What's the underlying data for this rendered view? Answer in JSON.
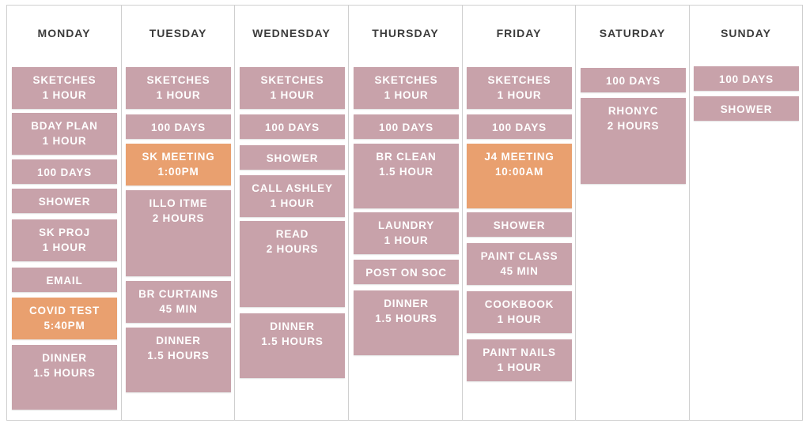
{
  "days": [
    {
      "name": "MONDAY",
      "tasks": [
        {
          "line1": "SKETCHES",
          "line2": "1 HOUR"
        },
        {
          "line1": "BDAY PLAN",
          "line2": "1 HOUR"
        },
        {
          "line1": "100 DAYS",
          "line2": ""
        },
        {
          "line1": "SHOWER",
          "line2": ""
        },
        {
          "line1": "SK PROJ",
          "line2": "1 HOUR"
        },
        {
          "line1": "EMAIL",
          "line2": ""
        },
        {
          "line1": "COVID TEST",
          "line2": "5:40PM",
          "color": "#e9a06f"
        },
        {
          "line1": "DINNER",
          "line2": "1.5 HOURS"
        }
      ]
    },
    {
      "name": "TUESDAY",
      "tasks": [
        {
          "line1": "SKETCHES",
          "line2": "1 HOUR"
        },
        {
          "line1": "100 DAYS",
          "line2": ""
        },
        {
          "line1": "SK MEETING",
          "line2": "1:00PM",
          "color": "#e9a06f"
        },
        {
          "line1": "ILLO ITME",
          "line2": "2 HOURS"
        },
        {
          "line1": "BR CURTAINS",
          "line2": "45 MIN"
        },
        {
          "line1": "DINNER",
          "line2": "1.5 HOURS"
        }
      ]
    },
    {
      "name": "WEDNESDAY",
      "tasks": [
        {
          "line1": "SKETCHES",
          "line2": "1 HOUR"
        },
        {
          "line1": "100 DAYS",
          "line2": ""
        },
        {
          "line1": "SHOWER",
          "line2": ""
        },
        {
          "line1": "CALL ASHLEY",
          "line2": "1 HOUR"
        },
        {
          "line1": "READ",
          "line2": "2 HOURS"
        },
        {
          "line1": "DINNER",
          "line2": "1.5 HOURS"
        }
      ]
    },
    {
      "name": "THURSDAY",
      "tasks": [
        {
          "line1": "SKETCHES",
          "line2": "1 HOUR"
        },
        {
          "line1": "100 DAYS",
          "line2": ""
        },
        {
          "line1": "BR CLEAN",
          "line2": "1.5 HOUR"
        },
        {
          "line1": "LAUNDRY",
          "line2": "1 HOUR"
        },
        {
          "line1": "POST ON SOC",
          "line2": ""
        },
        {
          "line1": "DINNER",
          "line2": "1.5 HOURS"
        }
      ]
    },
    {
      "name": "FRIDAY",
      "tasks": [
        {
          "line1": "SKETCHES",
          "line2": "1 HOUR"
        },
        {
          "line1": "100 DAYS",
          "line2": ""
        },
        {
          "line1": "J4 MEETING",
          "line2": "10:00AM",
          "color": "#e9a06f"
        },
        {
          "line1": "SHOWER",
          "line2": ""
        },
        {
          "line1": "PAINT CLASS",
          "line2": "45 MIN"
        },
        {
          "line1": "COOKBOOK",
          "line2": "1 HOUR"
        },
        {
          "line1": "PAINT NAILS",
          "line2": "1 HOUR"
        }
      ]
    },
    {
      "name": "SATURDAY",
      "tasks": [
        {
          "line1": "100 DAYS",
          "line2": ""
        },
        {
          "line1": "RHONYC",
          "line2": "2 HOURS"
        }
      ]
    },
    {
      "name": "SUNDAY",
      "tasks": [
        {
          "line1": "100 DAYS",
          "line2": ""
        },
        {
          "line1": "SHOWER",
          "line2": ""
        }
      ]
    }
  ]
}
